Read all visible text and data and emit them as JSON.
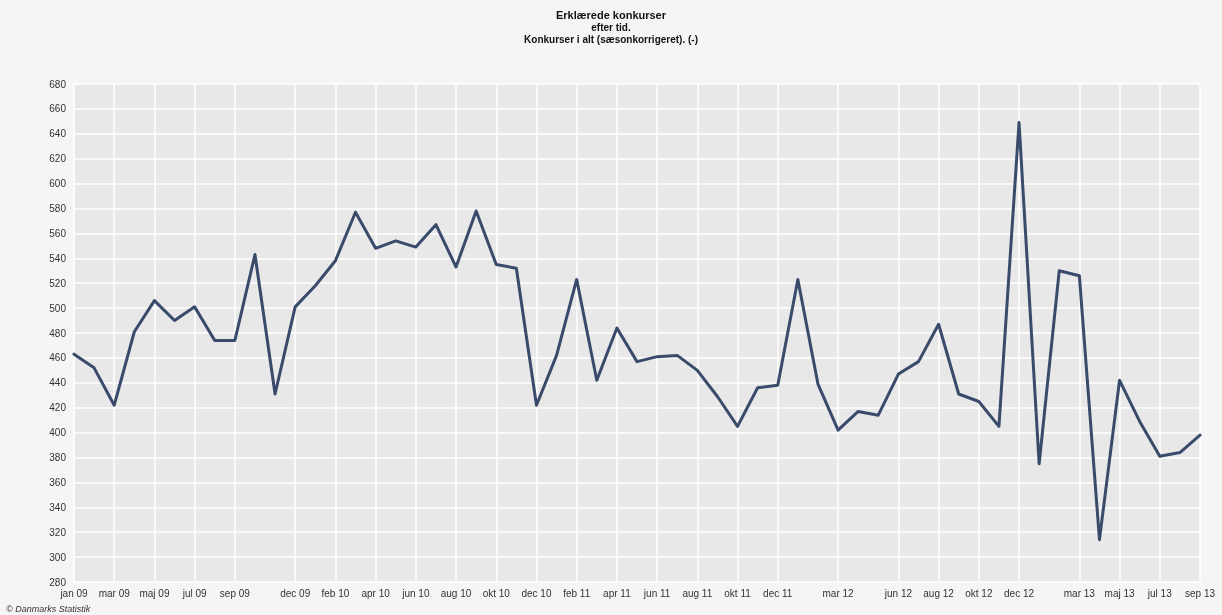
{
  "chart_data": {
    "type": "line",
    "title": "Erklærede konkurser",
    "subtitle": "efter tid.\nKonkurser i alt (sæsonkorrigeret). (-)",
    "categories": [
      "jan 09",
      null,
      "mar 09",
      null,
      "maj 09",
      null,
      "jul 09",
      null,
      "sep 09",
      null,
      null,
      "dec 09",
      null,
      "feb 10",
      null,
      "apr 10",
      null,
      "jun 10",
      null,
      "aug 10",
      null,
      "okt 10",
      null,
      "dec 10",
      null,
      "feb 11",
      null,
      "apr 11",
      null,
      "jun 11",
      null,
      "aug 11",
      null,
      "okt 11",
      null,
      "dec 11",
      null,
      null,
      "mar 12",
      null,
      null,
      "jun 12",
      null,
      "aug 12",
      null,
      "okt 12",
      null,
      "dec 12",
      null,
      null,
      "mar 13",
      null,
      "maj 13",
      null,
      "jul 13",
      null,
      "sep 13"
    ],
    "series": [
      {
        "color": "#3a4a6b",
        "values": [
          463,
          452,
          422,
          481,
          506,
          490,
          501,
          474,
          474,
          543,
          431,
          501,
          518,
          538,
          577,
          548,
          554,
          549,
          567,
          533,
          578,
          535,
          532,
          422,
          462,
          523,
          442,
          484,
          457,
          461,
          462,
          450,
          429,
          405,
          436,
          438,
          523,
          439,
          402,
          417,
          414,
          447,
          457,
          487,
          431,
          425,
          405,
          649,
          375,
          530,
          526,
          314,
          442,
          409,
          381,
          384,
          398
        ]
      }
    ],
    "ylim": [
      280,
      680
    ],
    "yticks": [
      280,
      300,
      320,
      340,
      360,
      380,
      400,
      420,
      440,
      460,
      480,
      500,
      520,
      540,
      560,
      580,
      600,
      620,
      640,
      660,
      680
    ],
    "grid": true,
    "marker": "none",
    "line_style": "solid",
    "annotations": [
      "© Danmarks Statistik"
    ]
  }
}
